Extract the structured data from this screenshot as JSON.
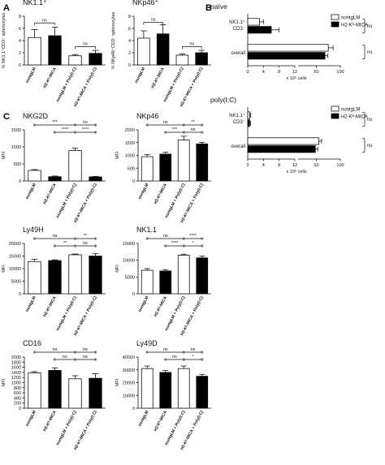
{
  "figure": {
    "panel_labels": [
      "A",
      "B",
      "C"
    ],
    "group_labels": [
      "nontgLM",
      "H2-Kᵇ-MICA",
      "nontgLM + Poly(I:C)",
      "H2-Kᵇ-MICA + Poly(I:C)"
    ],
    "colors": {
      "open": "#ffffff",
      "filled": "#000000",
      "ink": "#111111"
    },
    "legend": {
      "items": [
        "nontgLM",
        "H2-Kᵇ-MICA"
      ]
    }
  },
  "chart_data": [
    {
      "id": "A1",
      "type": "bar",
      "title": "NK1.1⁺",
      "ylabel": "% NK1.1⁺CD3⁻ splenocytes",
      "ylim": [
        0,
        8
      ],
      "yticks": [
        0,
        2,
        4,
        6,
        8
      ],
      "categories": [
        "nontgLM",
        "H2-Kᵇ-MICA",
        "nontgLM + Poly(I:C)",
        "H2-Kᵇ-MICA + Poly(I:C)"
      ],
      "values": [
        4.5,
        4.8,
        1.5,
        1.9
      ],
      "errors": [
        1.3,
        1.4,
        0.2,
        0.5
      ],
      "annotations": [
        {
          "from": 0,
          "to": 1,
          "text": "ns",
          "level": 6.9
        },
        {
          "from": 2,
          "to": 3,
          "text": "ns",
          "level": 3.0
        }
      ]
    },
    {
      "id": "A2",
      "type": "bar",
      "title": "NKp46⁺",
      "ylabel": "% NKp46⁺CD3⁻ splenocytes",
      "ylim": [
        0,
        8
      ],
      "yticks": [
        0,
        2,
        4,
        6,
        8
      ],
      "categories": [
        "nontgLM",
        "H2-Kᵇ-MICA",
        "nontgLM + Poly(I:C)",
        "H2-Kᵇ-MICA + Poly(I:C)"
      ],
      "values": [
        4.4,
        5.1,
        1.6,
        2.0
      ],
      "errors": [
        1.2,
        1.5,
        0.2,
        0.4
      ],
      "annotations": [
        {
          "from": 0,
          "to": 1,
          "text": "ns",
          "level": 7.0
        },
        {
          "from": 2,
          "to": 3,
          "text": "ns",
          "level": 3.0
        }
      ]
    },
    {
      "id": "B1",
      "type": "bar",
      "orientation": "horizontal",
      "title": "naïve",
      "categories": [
        "NK1.1⁺ CD3⁻",
        "overall"
      ],
      "series": [
        {
          "name": "nontgLM",
          "values": [
            3,
            75
          ],
          "errors": [
            1,
            10
          ]
        },
        {
          "name": "H2-Kᵇ-MICA",
          "values": [
            6,
            68
          ],
          "errors": [
            2,
            6
          ]
        }
      ],
      "xlabel": "x 10⁶ cells",
      "xticks": [
        "0",
        "4",
        "8",
        "12",
        "50",
        "100"
      ],
      "broken_axis": true,
      "annotations": [
        {
          "category": 0,
          "text": "ns"
        },
        {
          "category": 1,
          "text": "ns"
        }
      ]
    },
    {
      "id": "B2",
      "type": "bar",
      "orientation": "horizontal",
      "title": "poly(I:C)",
      "categories": [
        "NK1.1⁺ CD3⁻",
        "overall"
      ],
      "series": [
        {
          "name": "nontgLM",
          "values": [
            0.5,
            55
          ],
          "errors": [
            0.2,
            6
          ]
        },
        {
          "name": "H2-Kᵇ-MICA",
          "values": [
            0.5,
            48
          ],
          "errors": [
            0.2,
            5
          ]
        }
      ],
      "xlabel": "x 10⁶ cells",
      "xticks": [
        "0",
        "4",
        "8",
        "12",
        "50",
        "100"
      ],
      "broken_axis": true,
      "annotations": [
        {
          "category": 0,
          "text": "ns"
        },
        {
          "category": 1,
          "text": "ns"
        }
      ]
    },
    {
      "id": "C1",
      "type": "bar",
      "title": "NKG2D",
      "ylabel": "MFI",
      "ylim": [
        0,
        1500
      ],
      "yticks": [
        0,
        500,
        1000,
        1500
      ],
      "categories": [
        "nontgLM",
        "H2-Kᵇ-MICA",
        "nontgLM + Poly(I:C)",
        "H2-Kᵇ-MICA + Poly(I:C)"
      ],
      "values": [
        310,
        125,
        890,
        120
      ],
      "errors": [
        25,
        20,
        70,
        15
      ],
      "annotations": [
        {
          "from": 0,
          "to": 2,
          "text": "***",
          "row": 0
        },
        {
          "from": 2,
          "to": 3,
          "text": "ns",
          "row": 0
        },
        {
          "from": 1,
          "to": 2,
          "text": "****",
          "row": 1
        },
        {
          "from": 2,
          "to": 3,
          "text": "****",
          "row": 1
        }
      ]
    },
    {
      "id": "C2",
      "type": "bar",
      "title": "NKp46",
      "ylabel": "MFI",
      "ylim": [
        0,
        2000
      ],
      "yticks": [
        0,
        500,
        1000,
        1500,
        2000
      ],
      "categories": [
        "nontgLM",
        "H2-Kᵇ-MICA",
        "nontgLM + Poly(I:C)",
        "H2-Kᵇ-MICA + Poly(I:C)"
      ],
      "values": [
        950,
        1050,
        1600,
        1450
      ],
      "errors": [
        80,
        70,
        150,
        60
      ],
      "annotations": [
        {
          "from": 0,
          "to": 2,
          "text": "ns",
          "row": 0
        },
        {
          "from": 2,
          "to": 3,
          "text": "**",
          "row": 0
        },
        {
          "from": 1,
          "to": 2,
          "text": "***",
          "row": 1
        },
        {
          "from": 2,
          "to": 3,
          "text": "ns",
          "row": 1
        }
      ]
    },
    {
      "id": "C3",
      "type": "bar",
      "title": "Ly49H",
      "ylabel": "MFI",
      "ylim": [
        0,
        20000
      ],
      "yticks": [
        0,
        5000,
        10000,
        15000,
        20000
      ],
      "categories": [
        "nontgLM",
        "H2-Kᵇ-MICA",
        "nontgLM + Poly(I:C)",
        "H2-Kᵇ-MICA + Poly(I:C)"
      ],
      "values": [
        12800,
        13200,
        15500,
        15000
      ],
      "errors": [
        900,
        300,
        300,
        900
      ],
      "annotations": [
        {
          "from": 0,
          "to": 2,
          "text": "ns",
          "row": 0
        },
        {
          "from": 2,
          "to": 3,
          "text": "**",
          "row": 0
        },
        {
          "from": 1,
          "to": 2,
          "text": "**",
          "row": 1
        },
        {
          "from": 2,
          "to": 3,
          "text": "ns",
          "row": 1
        }
      ]
    },
    {
      "id": "C4",
      "type": "bar",
      "title": "NK1.1",
      "ylabel": "MFI",
      "ylim": [
        0,
        15000
      ],
      "yticks": [
        0,
        5000,
        10000,
        15000
      ],
      "categories": [
        "nontgLM",
        "H2-Kᵇ-MICA",
        "nontgLM + Poly(I:C)",
        "H2-Kᵇ-MICA + Poly(I:C)"
      ],
      "values": [
        7000,
        6800,
        11500,
        10700
      ],
      "errors": [
        500,
        400,
        300,
        500
      ],
      "annotations": [
        {
          "from": 0,
          "to": 2,
          "text": "ns",
          "row": 0
        },
        {
          "from": 2,
          "to": 3,
          "text": "****",
          "row": 0
        },
        {
          "from": 1,
          "to": 2,
          "text": "****",
          "row": 1
        },
        {
          "from": 2,
          "to": 3,
          "text": "*",
          "row": 1
        }
      ]
    },
    {
      "id": "C5",
      "type": "bar",
      "title": "CD16",
      "ylabel": "MFI",
      "ylim": [
        0,
        2000
      ],
      "yticks": [
        0,
        200,
        400,
        600,
        800,
        1000,
        1200,
        1400,
        1600,
        1800,
        2000
      ],
      "categories": [
        "nontgLM",
        "H2-Kᵇ-MICA",
        "nontgLM + Poly(I:C)",
        "H2-Kᵇ-MICA + Poly(I:C)"
      ],
      "values": [
        1380,
        1480,
        1150,
        1170
      ],
      "errors": [
        50,
        100,
        120,
        180
      ],
      "annotations": [
        {
          "from": 0,
          "to": 2,
          "text": "ns",
          "row": 0
        },
        {
          "from": 2,
          "to": 3,
          "text": "ns",
          "row": 0
        },
        {
          "from": 1,
          "to": 2,
          "text": "ns",
          "row": 1
        },
        {
          "from": 2,
          "to": 3,
          "text": "ns",
          "row": 1
        }
      ]
    },
    {
      "id": "C6",
      "type": "bar",
      "title": "Ly49D",
      "ylabel": "MFI",
      "ylim": [
        0,
        40000
      ],
      "yticks": [
        0,
        10000,
        20000,
        30000,
        40000
      ],
      "categories": [
        "nontgLM",
        "H2-Kᵇ-MICA",
        "nontgLM + Poly(I:C)",
        "H2-Kᵇ-MICA + Poly(I:C)"
      ],
      "values": [
        31000,
        28000,
        31000,
        25000
      ],
      "errors": [
        2000,
        1500,
        2000,
        1500
      ],
      "annotations": [
        {
          "from": 0,
          "to": 2,
          "text": "ns",
          "row": 0
        },
        {
          "from": 2,
          "to": 3,
          "text": "ns",
          "row": 0
        },
        {
          "from": 1,
          "to": 2,
          "text": "ns",
          "row": 1
        },
        {
          "from": 2,
          "to": 3,
          "text": "*",
          "row": 1
        }
      ]
    }
  ]
}
